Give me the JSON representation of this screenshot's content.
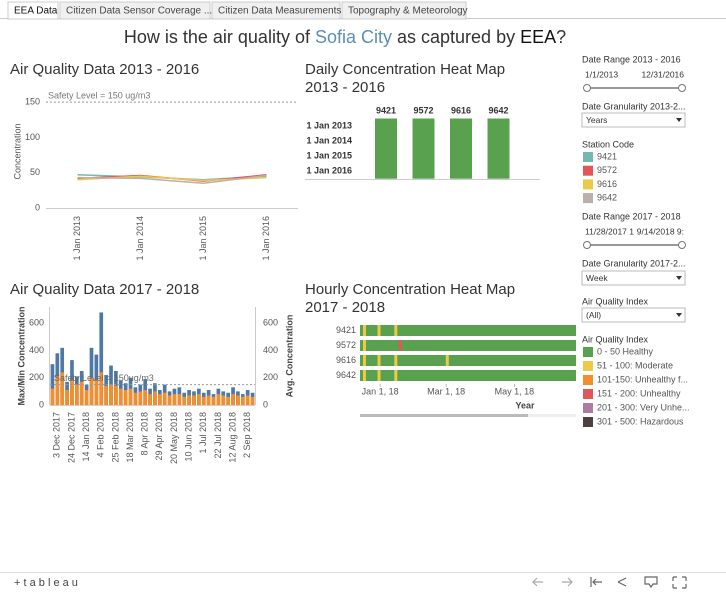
{
  "tabs": [
    "EEA Data",
    "Citizen Data Sensor Coverage ...",
    "Citizen Data Measurements",
    "Topography & Meteorology"
  ],
  "title": {
    "before": "How is the air quality of ",
    "city": "Sofia City",
    "middle": " as captured by ",
    "org": "EEA",
    "after": "?"
  },
  "charts": [
    {
      "type": "line",
      "title": "Air Quality Data 2013 - 2016",
      "ylabel": "Concentration",
      "categories": [
        "1 Jan 2013",
        "1 Jan 2014",
        "1 Jan 2015",
        "1 Jan 2016"
      ],
      "ylim": [
        0,
        160
      ],
      "yticks": [
        0,
        50,
        100,
        150
      ],
      "grid": false,
      "reference": {
        "value": 150,
        "label": "Safety Level = 150 ug/m3"
      },
      "series": [
        {
          "name": "9421",
          "color": "#76b7b2",
          "values": [
            47,
            44,
            40,
            45
          ]
        },
        {
          "name": "9572",
          "color": "#e15759",
          "values": [
            42,
            46,
            38,
            47
          ]
        },
        {
          "name": "9616",
          "color": "#edc948",
          "values": [
            40,
            45,
            39,
            43
          ]
        },
        {
          "name": "9642",
          "color": "#bab0ac",
          "values": [
            43,
            42,
            35,
            46
          ]
        }
      ]
    },
    {
      "type": "heatmap",
      "title": [
        "Daily Concentration Heat Map",
        "2013 - 2016"
      ],
      "columns": [
        "9421",
        "9572",
        "9616",
        "9642"
      ],
      "rows": [
        "1 Jan 2013",
        "1 Jan 2014",
        "1 Jan 2015",
        "1 Jan 2016"
      ],
      "color": "#59a14f"
    },
    {
      "type": "bar",
      "title": "Air Quality Data 2017 - 2018",
      "ylabel": "Max/Min Concentration",
      "y2label": "Avg. Concentration",
      "categories": [
        null,
        "3 Dec 2017",
        null,
        null,
        "24 Dec 2017",
        null,
        null,
        "14 Jan 2018",
        null,
        null,
        "4 Feb 2018",
        null,
        null,
        "25 Feb 2018",
        null,
        null,
        "18 Mar 2018",
        null,
        null,
        "8 Apr 2018",
        null,
        null,
        "29 Apr 2018",
        null,
        null,
        "20 May 2018",
        null,
        null,
        "10 Jun 2018",
        null,
        null,
        "1 Jul 2018",
        null,
        null,
        "22 Jul 2018",
        null,
        null,
        "12 Aug 2018",
        null,
        null,
        "2 Sep 2018",
        null
      ],
      "ylim": [
        0,
        720
      ],
      "yticks": [
        0,
        200,
        400,
        600
      ],
      "y2lim": [
        0,
        720
      ],
      "y2ticks": [
        0,
        200,
        400,
        600
      ],
      "reference": {
        "value": 150,
        "label": "Safety Level = 150ug/m3"
      },
      "series": [
        {
          "name": "Max",
          "color": "#4e79a7",
          "values": [
            300,
            380,
            420,
            170,
            330,
            210,
            250,
            150,
            420,
            370,
            680,
            220,
            290,
            250,
            180,
            160,
            200,
            130,
            150,
            190,
            120,
            160,
            110,
            150,
            100,
            120,
            130,
            90,
            110,
            100,
            120,
            90,
            110,
            80,
            120,
            100,
            90,
            130,
            100,
            80,
            110,
            90
          ]
        },
        {
          "name": "Avg",
          "color": "#f28e2b",
          "axis": "y2",
          "values": [
            120,
            210,
            240,
            110,
            180,
            150,
            170,
            110,
            200,
            180,
            240,
            140,
            150,
            140,
            120,
            110,
            120,
            90,
            100,
            110,
            80,
            100,
            80,
            90,
            70,
            80,
            80,
            60,
            70,
            70,
            80,
            60,
            70,
            60,
            80,
            70,
            60,
            80,
            70,
            60,
            70,
            60
          ]
        }
      ]
    },
    {
      "type": "heatmap-time",
      "title": [
        "Hourly Concentration Heat Map",
        "2017 - 2018"
      ],
      "xlabel": "Year",
      "rows": [
        "9421",
        "9572",
        "9616",
        "9642"
      ],
      "color": "#59a14f",
      "xlim": [
        -18,
        175
      ],
      "xticks": [
        {
          "value": 0,
          "label": "Jan 1, 18"
        },
        {
          "value": 59,
          "label": "Mar 1, 18"
        },
        {
          "value": 120,
          "label": "May 1, 18"
        }
      ],
      "highlights": [
        {
          "station": "9421",
          "x": -14,
          "color": "#edc948"
        },
        {
          "station": "9421",
          "x": -1,
          "color": "#edc948"
        },
        {
          "station": "9421",
          "x": 14,
          "color": "#edc948"
        },
        {
          "station": "9572",
          "x": -14,
          "color": "#edc948"
        },
        {
          "station": "9572",
          "x": 18,
          "color": "#e15759"
        },
        {
          "station": "9616",
          "x": -14,
          "color": "#edc948"
        },
        {
          "station": "9616",
          "x": -1,
          "color": "#edc948"
        },
        {
          "station": "9616",
          "x": 14,
          "color": "#edc948"
        },
        {
          "station": "9616",
          "x": 60,
          "color": "#edc948"
        },
        {
          "station": "9642",
          "x": -14,
          "color": "#edc948"
        },
        {
          "station": "9642",
          "x": -1,
          "color": "#edc948"
        },
        {
          "station": "9642",
          "x": 14,
          "color": "#edc948"
        }
      ]
    }
  ],
  "filters": {
    "range1": {
      "label": "Date Range 2013 - 2016",
      "start": "1/1/2013",
      "end": "12/31/2016"
    },
    "gran1": {
      "label": "Date Granularity 2013-2...",
      "value": "Years"
    },
    "station_legend": "Station Code",
    "range2": {
      "label": "Date Range 2017 - 2018",
      "start": "11/28/2017 1",
      "end": "9/14/2018 9:"
    },
    "gran2": {
      "label": "Date Granularity 2017-2...",
      "value": "Week"
    },
    "aqi": {
      "label": "Air Quality Index",
      "value": "(All)"
    },
    "aqi_legend": {
      "title": "Air Quality Index",
      "items": [
        {
          "name": "0 - 50 Healthy",
          "color": "#59a14f"
        },
        {
          "name": "51 - 100: Moderate",
          "color": "#edc948"
        },
        {
          "name": "101-150: Unhealthy f...",
          "color": "#f28e2b"
        },
        {
          "name": "151 - 200: Unhealthy",
          "color": "#e15759"
        },
        {
          "name": "201 - 300: Very Unhe...",
          "color": "#b07aa1"
        },
        {
          "name": "301 - 500: Hazardous",
          "color": "#4d4040"
        }
      ]
    }
  },
  "footer": {
    "logo": "+ t a b l e a u"
  }
}
